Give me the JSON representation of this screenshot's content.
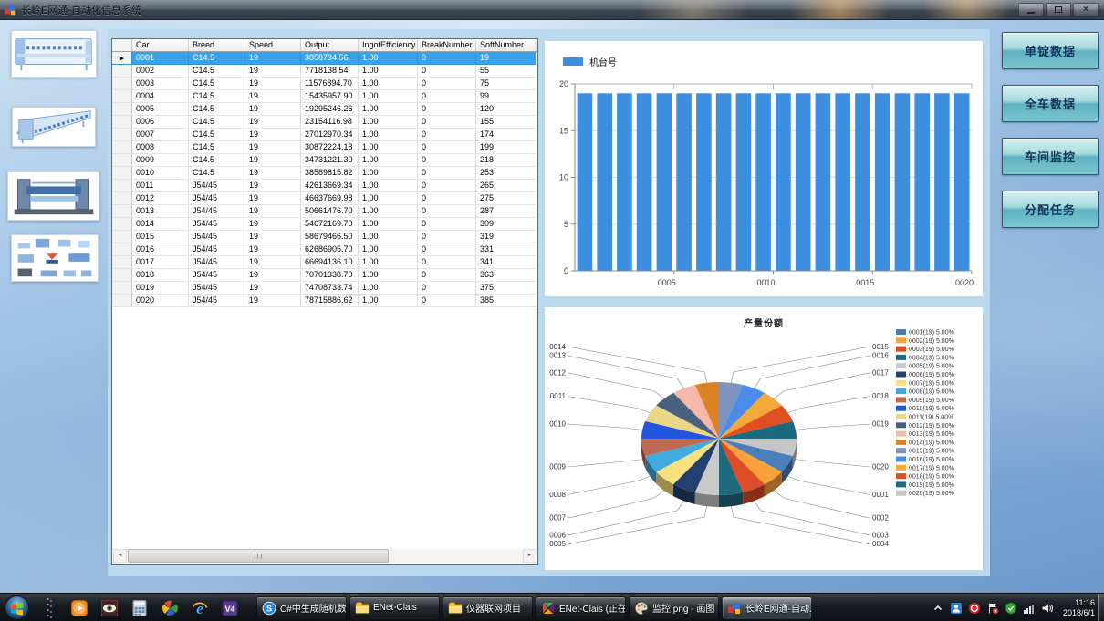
{
  "window": {
    "title": "长岭E网通-自动化信息系统"
  },
  "sidebar": {
    "machines": [
      "spinning-frame-photo",
      "roving-frame-photo",
      "loom-photo",
      "equipment-collage-photo"
    ]
  },
  "table": {
    "columns": [
      "Car",
      "Breed",
      "Speed",
      "Output",
      "IngotEfficiency",
      "BreakNumber",
      "SoftNumber"
    ],
    "selected_row": 0,
    "rows": [
      [
        "0001",
        "C14.5",
        "19",
        "3858734.56",
        "1.00",
        "0",
        "19"
      ],
      [
        "0002",
        "C14.5",
        "19",
        "7718138.54",
        "1.00",
        "0",
        "55"
      ],
      [
        "0003",
        "C14.5",
        "19",
        "11576894.70",
        "1.00",
        "0",
        "75"
      ],
      [
        "0004",
        "C14.5",
        "19",
        "15435957.90",
        "1.00",
        "0",
        "99"
      ],
      [
        "0005",
        "C14.5",
        "19",
        "19295246.26",
        "1.00",
        "0",
        "120"
      ],
      [
        "0006",
        "C14.5",
        "19",
        "23154116.98",
        "1.00",
        "0",
        "155"
      ],
      [
        "0007",
        "C14.5",
        "19",
        "27012970.34",
        "1.00",
        "0",
        "174"
      ],
      [
        "0008",
        "C14.5",
        "19",
        "30872224.18",
        "1.00",
        "0",
        "199"
      ],
      [
        "0009",
        "C14.5",
        "19",
        "34731221.30",
        "1.00",
        "0",
        "218"
      ],
      [
        "0010",
        "C14.5",
        "19",
        "38589815.82",
        "1.00",
        "0",
        "253"
      ],
      [
        "0011",
        "J54/45",
        "19",
        "42613669.34",
        "1.00",
        "0",
        "265"
      ],
      [
        "0012",
        "J54/45",
        "19",
        "46637669.98",
        "1.00",
        "0",
        "275"
      ],
      [
        "0013",
        "J54/45",
        "19",
        "50661476.70",
        "1.00",
        "0",
        "287"
      ],
      [
        "0014",
        "J54/45",
        "19",
        "54672169.70",
        "1.00",
        "0",
        "309"
      ],
      [
        "0015",
        "J54/45",
        "19",
        "58679466.50",
        "1.00",
        "0",
        "319"
      ],
      [
        "0016",
        "J54/45",
        "19",
        "62686905.70",
        "1.00",
        "0",
        "331"
      ],
      [
        "0017",
        "J54/45",
        "19",
        "66694136.10",
        "1.00",
        "0",
        "341"
      ],
      [
        "0018",
        "J54/45",
        "19",
        "70701338.70",
        "1.00",
        "0",
        "363"
      ],
      [
        "0019",
        "J54/45",
        "19",
        "74708733.74",
        "1.00",
        "0",
        "375"
      ],
      [
        "0020",
        "J54/45",
        "19",
        "78715886.62",
        "1.00",
        "0",
        "385"
      ]
    ]
  },
  "action_buttons": [
    "单锭数据",
    "全车数据",
    "车间监控",
    "分配任务"
  ],
  "chart_data": [
    {
      "type": "bar",
      "legend": "机台号",
      "legend_position": "top-left",
      "categories": [
        "0001",
        "0002",
        "0003",
        "0004",
        "0005",
        "0006",
        "0007",
        "0008",
        "0009",
        "0010",
        "0011",
        "0012",
        "0013",
        "0014",
        "0015",
        "0016",
        "0017",
        "0018",
        "0019",
        "0020"
      ],
      "values": [
        19,
        19,
        19,
        19,
        19,
        19,
        19,
        19,
        19,
        19,
        19,
        19,
        19,
        19,
        19,
        19,
        19,
        19,
        19,
        19
      ],
      "ylim": [
        0,
        20
      ],
      "yticks": [
        0,
        5,
        10,
        15,
        20
      ],
      "xticks": [
        "0005",
        "0010",
        "0015",
        "0020"
      ],
      "grid": true,
      "bar_color": "#3e8ee0"
    },
    {
      "type": "pie",
      "title": "产量份额",
      "labels": [
        "0001",
        "0002",
        "0003",
        "0004",
        "0005",
        "0006",
        "0007",
        "0008",
        "0009",
        "0010",
        "0011",
        "0012",
        "0013",
        "0014",
        "0015",
        "0016",
        "0017",
        "0018",
        "0019",
        "0020"
      ],
      "values": [
        19,
        19,
        19,
        19,
        19,
        19,
        19,
        19,
        19,
        19,
        19,
        19,
        19,
        19,
        19,
        19,
        19,
        19,
        19,
        19
      ],
      "percent_label": "5.00%",
      "legend_position": "right",
      "rotation_start_index": 14,
      "colors": [
        "#4a7ebb",
        "#f9a23c",
        "#dd4b27",
        "#1f6b7d",
        "#c9c9c9",
        "#24406e",
        "#f7e17e",
        "#43aade",
        "#bd6a51",
        "#2456dd",
        "#ead687",
        "#49607e",
        "#f4b9a9",
        "#dd8327",
        "#7d94bf",
        "#4b8bea",
        "#f3a83a",
        "#e04f22",
        "#1c6a80",
        "#c6c6c6"
      ]
    }
  ],
  "taskbar": {
    "quick_launch": [
      "grip",
      "wmp",
      "acdsee-eye",
      "calculator",
      "pinwheel",
      "internet-explorer",
      "foxit-v4"
    ],
    "windows": [
      {
        "icon": "sogou-s",
        "label": "C#中生成随机数..."
      },
      {
        "icon": "folder",
        "label": "ENet-Clais"
      },
      {
        "icon": "folder",
        "label": "仪器联网项目"
      },
      {
        "icon": "visual-studio",
        "label": "ENet-Clais (正在..."
      },
      {
        "icon": "paint",
        "label": "监控.png - 画图"
      },
      {
        "icon": "app-squares",
        "label": "长岭E网通-自动...",
        "active": true
      }
    ],
    "tray": {
      "icons": [
        "tray-person",
        "tray-red-badge",
        "tray-flag",
        "tray-shield",
        "tray-signal",
        "tray-volume"
      ],
      "time": "11:16",
      "date": "2018/6/1"
    }
  }
}
